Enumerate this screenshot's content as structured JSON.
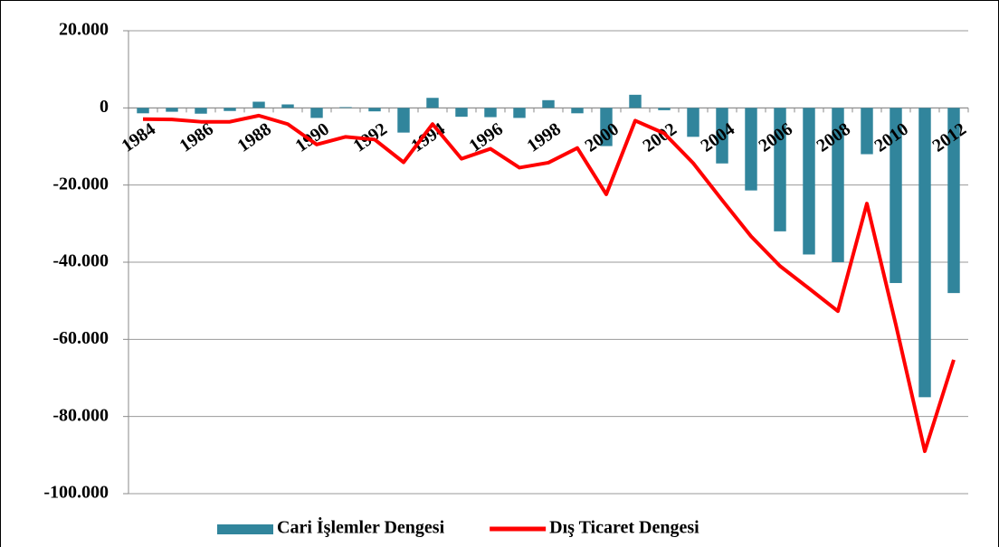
{
  "chart_data": {
    "type": "bar+line",
    "categories": [
      "1984",
      null,
      "1986",
      null,
      "1988",
      null,
      "1990",
      null,
      "1992",
      null,
      "1994",
      null,
      "1996",
      null,
      "1998",
      null,
      "2000",
      null,
      "2002",
      null,
      "2004",
      null,
      "2006",
      null,
      "2008",
      null,
      "2010",
      null,
      "2012"
    ],
    "series": [
      {
        "name": "Cari İşlemler Dengesi",
        "type": "bar",
        "color": "#31859c",
        "values": [
          -1400,
          -1000,
          -1500,
          -800,
          1600,
          900,
          -2600,
          200,
          -900,
          -6400,
          2600,
          -2300,
          -2400,
          -2600,
          2000,
          -1400,
          -9900,
          3400,
          -600,
          -7500,
          -14400,
          -21400,
          -32000,
          -38000,
          -40000,
          -12000,
          -45400,
          -75000,
          -48000
        ]
      },
      {
        "name": "Dış Ticaret Dengesi",
        "type": "line",
        "color": "#ff0000",
        "values": [
          -2900,
          -3000,
          -3600,
          -3600,
          -2000,
          -4200,
          -9500,
          -7500,
          -8200,
          -14100,
          -4200,
          -13200,
          -10600,
          -15500,
          -14200,
          -10400,
          -22400,
          -3300,
          -6600,
          -14300,
          -23900,
          -33300,
          -41000,
          -46800,
          -52700,
          -24800,
          -56200,
          -89000,
          -65300
        ]
      }
    ],
    "ylim": [
      -100000,
      20000
    ],
    "yticks": [
      {
        "value": -100000,
        "label": "-100.000"
      },
      {
        "value": -80000,
        "label": "-80.000"
      },
      {
        "value": -60000,
        "label": "-60.000"
      },
      {
        "value": -40000,
        "label": "-40.000"
      },
      {
        "value": -20000,
        "label": "-20.000"
      },
      0,
      {
        "value": 20000,
        "label": "20.000"
      }
    ],
    "grid": true,
    "legend": "bottom"
  }
}
